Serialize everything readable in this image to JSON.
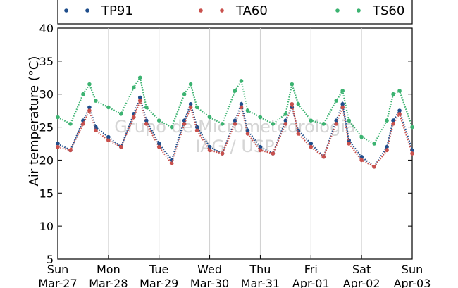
{
  "chart_data": {
    "type": "scatter",
    "title": "",
    "xlabel": "",
    "ylabel": "Air temperature (°C)",
    "ylim": [
      5,
      40
    ],
    "yticks": [
      5,
      10,
      15,
      20,
      25,
      30,
      35,
      40
    ],
    "x_range": [
      "2016-03-27 00:00",
      "2016-04-03 00:00"
    ],
    "x_tick_labels": [
      {
        "day": "Sun",
        "date": "Mar-27"
      },
      {
        "day": "Mon",
        "date": "Mar-28"
      },
      {
        "day": "Tue",
        "date": "Mar-29"
      },
      {
        "day": "Wed",
        "date": "Mar-30"
      },
      {
        "day": "Thu",
        "date": "Mar-31"
      },
      {
        "day": "Fri",
        "date": "Apr-01"
      },
      {
        "day": "Sat",
        "date": "Apr-02"
      },
      {
        "day": "Sun",
        "date": "Apr-03"
      }
    ],
    "grid": "vertical",
    "legend_placement": "top",
    "watermark": [
      "Grupo de Micrometeorologia",
      "IAG / USP"
    ],
    "series": [
      {
        "name": "TP91",
        "color": "#1f4e8c",
        "x": [
          "Mar-27 00:00",
          "Mar-27 06:00",
          "Mar-27 12:00",
          "Mar-27 15:00",
          "Mar-27 18:00",
          "Mar-28 00:00",
          "Mar-28 06:00",
          "Mar-28 12:00",
          "Mar-28 15:00",
          "Mar-28 18:00",
          "Mar-29 00:00",
          "Mar-29 06:00",
          "Mar-29 12:00",
          "Mar-29 15:00",
          "Mar-29 18:00",
          "Mar-30 00:00",
          "Mar-30 06:00",
          "Mar-30 12:00",
          "Mar-30 15:00",
          "Mar-30 18:00",
          "Mar-31 00:00",
          "Mar-31 06:00",
          "Mar-31 12:00",
          "Mar-31 15:00",
          "Mar-31 18:00",
          "Apr-01 00:00",
          "Apr-01 06:00",
          "Apr-01 12:00",
          "Apr-01 15:00",
          "Apr-01 18:00",
          "Apr-02 00:00",
          "Apr-02 06:00",
          "Apr-02 12:00",
          "Apr-02 15:00",
          "Apr-02 18:00",
          "Apr-03 00:00"
        ],
        "y": [
          22.5,
          21.5,
          26,
          28,
          25,
          23.5,
          22,
          27,
          29.5,
          26,
          22.5,
          20,
          26,
          28.5,
          25,
          22,
          21,
          26,
          28.5,
          24.5,
          22,
          21,
          26,
          28,
          24.5,
          22.5,
          20.5,
          26,
          28.5,
          23,
          20.5,
          19,
          22,
          26,
          27.5,
          21.5
        ]
      },
      {
        "name": "TA60",
        "color": "#c9504c",
        "x": [
          "Mar-27 00:00",
          "Mar-27 06:00",
          "Mar-27 12:00",
          "Mar-27 15:00",
          "Mar-27 18:00",
          "Mar-28 00:00",
          "Mar-28 06:00",
          "Mar-28 12:00",
          "Mar-28 15:00",
          "Mar-28 18:00",
          "Mar-29 00:00",
          "Mar-29 06:00",
          "Mar-29 12:00",
          "Mar-29 15:00",
          "Mar-29 18:00",
          "Mar-30 00:00",
          "Mar-30 06:00",
          "Mar-30 12:00",
          "Mar-30 15:00",
          "Mar-30 18:00",
          "Mar-31 00:00",
          "Mar-31 06:00",
          "Mar-31 12:00",
          "Mar-31 15:00",
          "Mar-31 18:00",
          "Apr-01 00:00",
          "Apr-01 06:00",
          "Apr-01 12:00",
          "Apr-01 15:00",
          "Apr-01 18:00",
          "Apr-02 00:00",
          "Apr-02 06:00",
          "Apr-02 12:00",
          "Apr-02 15:00",
          "Apr-02 18:00",
          "Apr-03 00:00"
        ],
        "y": [
          22,
          21.5,
          25.5,
          27.5,
          24.5,
          23,
          22,
          26.5,
          29,
          25.5,
          22,
          19.5,
          25.5,
          28,
          24.5,
          21.5,
          21,
          25.5,
          28,
          24,
          21.5,
          21,
          25.5,
          28.5,
          24,
          22,
          20.5,
          25.5,
          28,
          22.5,
          20,
          19,
          21.5,
          25.5,
          27,
          21
        ]
      },
      {
        "name": "TS60",
        "color": "#3cb371",
        "x": [
          "Mar-27 00:00",
          "Mar-27 06:00",
          "Mar-27 12:00",
          "Mar-27 15:00",
          "Mar-27 18:00",
          "Mar-28 00:00",
          "Mar-28 06:00",
          "Mar-28 12:00",
          "Mar-28 15:00",
          "Mar-28 18:00",
          "Mar-29 00:00",
          "Mar-29 06:00",
          "Mar-29 12:00",
          "Mar-29 15:00",
          "Mar-29 18:00",
          "Mar-30 00:00",
          "Mar-30 06:00",
          "Mar-30 12:00",
          "Mar-30 15:00",
          "Mar-30 18:00",
          "Mar-31 00:00",
          "Mar-31 06:00",
          "Mar-31 12:00",
          "Mar-31 15:00",
          "Mar-31 18:00",
          "Apr-01 00:00",
          "Apr-01 06:00",
          "Apr-01 12:00",
          "Apr-01 15:00",
          "Apr-01 18:00",
          "Apr-02 00:00",
          "Apr-02 06:00",
          "Apr-02 12:00",
          "Apr-02 15:00",
          "Apr-02 18:00",
          "Apr-03 00:00"
        ],
        "y": [
          26.5,
          25.5,
          30,
          31.5,
          29,
          28,
          27,
          31,
          32.5,
          28,
          26,
          25,
          30,
          31.5,
          28,
          26.5,
          25.5,
          30.5,
          32,
          27.5,
          26.5,
          25.5,
          27,
          31.5,
          28.5,
          26,
          25.5,
          29,
          30.5,
          26,
          23.5,
          22.5,
          26,
          30,
          30.5,
          25
        ]
      }
    ]
  }
}
